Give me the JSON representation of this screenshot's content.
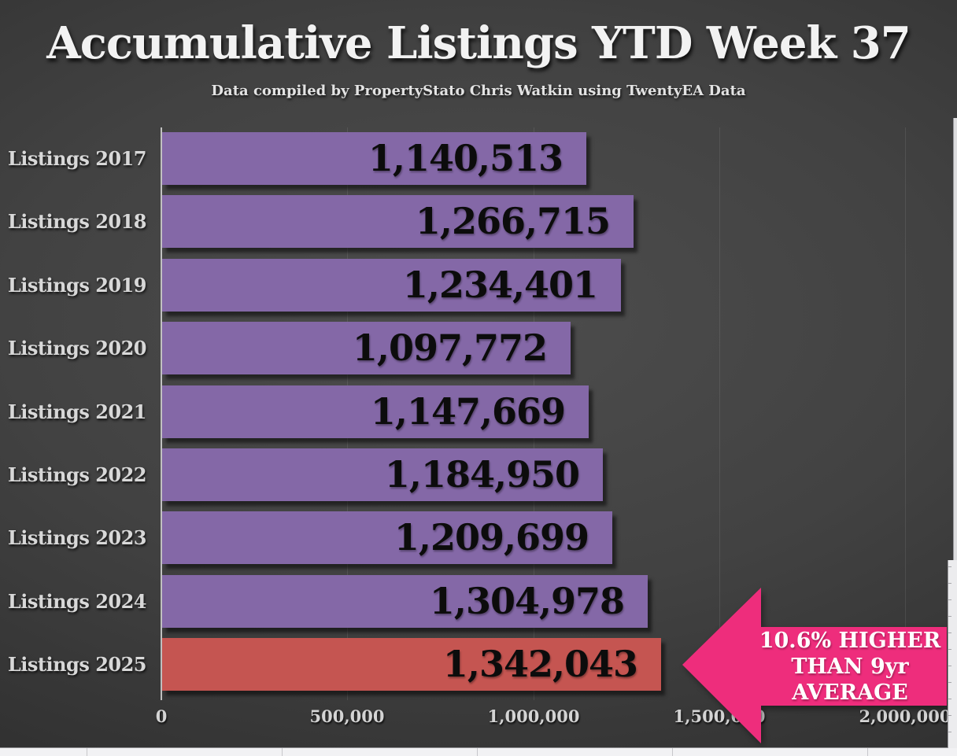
{
  "title": "Accumulative Listings YTD Week 37",
  "subtitle": "Data compiled by PropertyStato Chris Watkin using TwentyEA Data",
  "chart_data": {
    "type": "bar",
    "orientation": "horizontal",
    "title": "Accumulative Listings YTD Week 37",
    "subtitle": "Data compiled by PropertyStato Chris Watkin using TwentyEA Data",
    "categories": [
      "Listings 2017",
      "Listings 2018",
      "Listings 2019",
      "Listings 2020",
      "Listings 2021",
      "Listings 2022",
      "Listings 2023",
      "Listings 2024",
      "Listings 2025"
    ],
    "values": [
      1140513,
      1266715,
      1234401,
      1097772,
      1147669,
      1184950,
      1209699,
      1304978,
      1342043
    ],
    "value_labels": [
      "1,140,513",
      "1,266,715",
      "1,234,401",
      "1,097,772",
      "1,147,669",
      "1,184,950",
      "1,209,699",
      "1,304,978",
      "1,342,043"
    ],
    "xlim": [
      0,
      2000000
    ],
    "x_tick_values": [
      0,
      500000,
      1000000,
      1500000,
      2000000
    ],
    "x_ticks": [
      "0",
      "500,000",
      "1,000,000",
      "1,500,000",
      "2,000,000"
    ],
    "grid": true,
    "legend": false,
    "bar_color": "#8468A7",
    "highlight_color": "#C55551",
    "highlight_index": 8,
    "label_color": "#d8d8d8",
    "value_text_color": "#0c0c0c"
  },
  "annotation": {
    "shape": "left-arrow",
    "color": "#EE2D7C",
    "text_color": "#ffffff",
    "text": "10.6% HIGHER THAN 9yr AVERAGE",
    "lines": [
      "10.6% HIGHER",
      "THAN 9yr",
      "AVERAGE"
    ]
  }
}
